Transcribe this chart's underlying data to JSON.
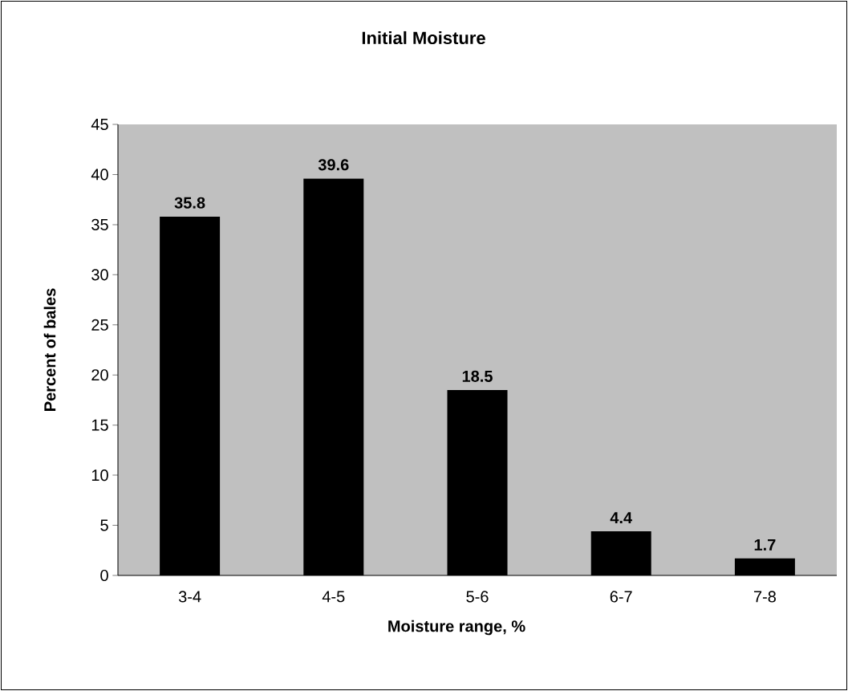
{
  "chart_data": {
    "type": "bar",
    "title": "Initial Moisture",
    "xlabel": "Moisture range, %",
    "ylabel": "Percent of bales",
    "categories": [
      "3-4",
      "4-5",
      "5-6",
      "6-7",
      "7-8"
    ],
    "values": [
      35.8,
      39.6,
      18.5,
      4.4,
      1.7
    ],
    "color": "#000000",
    "ylim": [
      0,
      45
    ],
    "yticks": [
      0,
      5,
      10,
      15,
      20,
      25,
      30,
      35,
      40,
      45
    ],
    "grid": false,
    "data_labels": true
  }
}
